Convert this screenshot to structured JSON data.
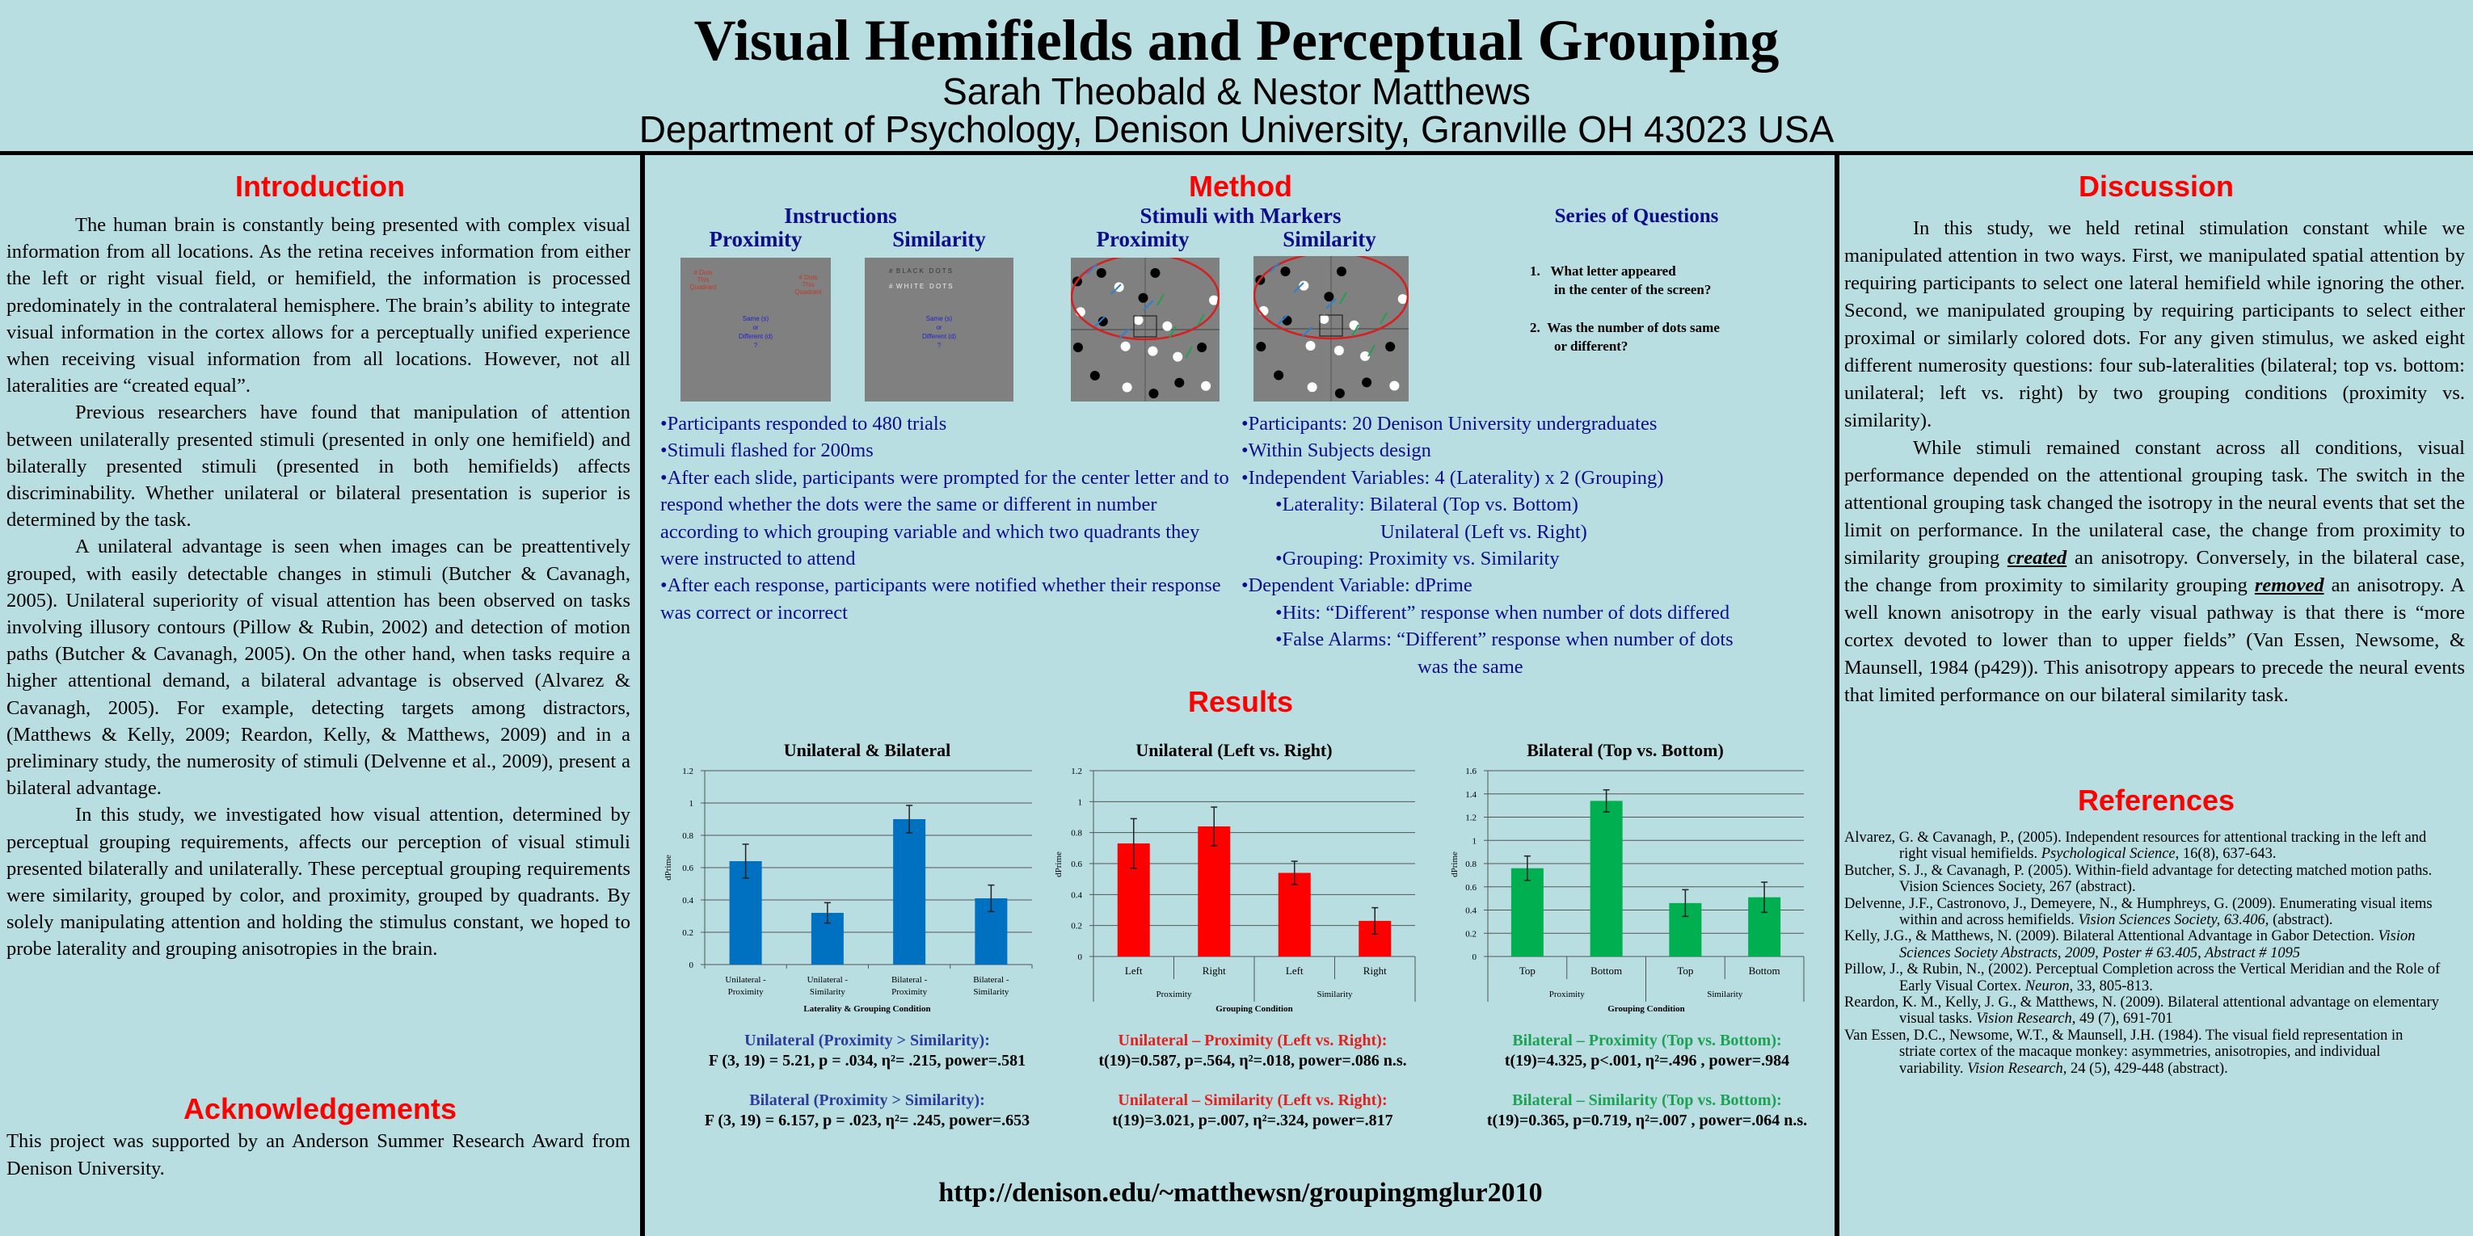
{
  "header": {
    "title": "Visual Hemifields and Perceptual Grouping",
    "authors": "Sarah Theobald & Nestor Matthews",
    "affiliation": "Department of Psychology, Denison University, Granville OH 43023 USA"
  },
  "introduction": {
    "heading": "Introduction",
    "paragraphs": [
      "The human brain is constantly being presented with complex visual information from all locations. As the retina receives information from either the left or right visual field, or hemifield, the information is processed predominately in the contralateral hemisphere. The brain’s ability to integrate visual information in the cortex allows for a perceptually unified experience when receiving visual information from all locations. However, not all lateralities are “created equal”.",
      "Previous researchers have found that manipulation of attention between unilaterally presented stimuli (presented in only one hemifield) and bilaterally presented stimuli (presented in both hemifields) affects discriminability. Whether unilateral or bilateral presentation is superior  is determined by the task.",
      "A unilateral advantage is seen when images can be preattentively grouped, with easily detectable changes in stimuli (Butcher & Cavanagh, 2005). Unilateral superiority  of visual attention has been observed on tasks involving illusory contours (Pillow & Rubin, 2002) and detection of motion paths (Butcher & Cavanagh, 2005). On the other hand, when tasks require a higher attentional demand, a bilateral advantage is observed (Alvarez & Cavanagh, 2005). For example, detecting targets among distractors, (Matthews & Kelly, 2009; Reardon, Kelly, & Matthews, 2009) and in a preliminary study, the numerosity of stimuli (Delvenne et al., 2009), present a bilateral advantage.",
      "In this study, we investigated how visual attention, determined by perceptual grouping requirements, affects our perception of visual stimuli presented bilaterally and unilaterally. These perceptual grouping requirements were similarity, grouped by color, and proximity, grouped by quadrants. By solely manipulating attention and holding the stimulus constant, we hoped to probe laterality and grouping anisotropies in the brain."
    ]
  },
  "acknowledgements": {
    "heading": "Acknowledgements",
    "text": "This project was supported by an Anderson Summer Research Award from Denison University."
  },
  "method": {
    "heading": "Method",
    "instructions_heading": "Instructions",
    "stimuli_heading": "Stimuli with Markers",
    "proximity": "Proximity",
    "similarity": "Similarity",
    "instr_proximity_corner": "# Dots This Quadrant",
    "instr_black": "#  B L A C K   D O T S",
    "instr_white": "#  W H I T E   D O T S",
    "instr_prompt": [
      "Same (s)",
      "or",
      "Different (d)",
      "?"
    ],
    "questions_heading": "Series of Questions",
    "questions": [
      {
        "num": "1.",
        "line1": "What letter appeared",
        "line2": "in the center of the screen?"
      },
      {
        "num": "2.",
        "line1": "Was the number of dots same",
        "line2": "or different?"
      }
    ],
    "procedure": [
      "•Participants responded to 480 trials",
      "•Stimuli flashed for 200ms",
      "•After each slide, participants were prompted for the center letter and to respond whether the dots were the same or different in number according to which grouping variable and which two quadrants they were instructed to attend",
      "•After each response, participants were notified whether their response was correct or incorrect"
    ],
    "design": {
      "participants": "•Participants: 20 Denison University undergraduates",
      "within": "•Within Subjects design",
      "iv": "•Independent Variables: 4 (Laterality) x 2 (Grouping)",
      "laterality_label": "•Laterality:",
      "laterality_1": "Bilateral (Top vs. Bottom)",
      "laterality_2": "Unilateral  (Left vs. Right)",
      "grouping": "•Grouping: Proximity vs. Similarity",
      "dv": "•Dependent Variable: dPrime",
      "hits": "•Hits: “Different”  response when number of dots differed",
      "fa": "•False Alarms: “Different” response when number of dots",
      "fa2": "was the same"
    }
  },
  "results": {
    "heading": "Results",
    "stats": [
      [
        {
          "head": "Unilateral (Proximity > Similarity):",
          "value": "F (3, 19) = 5.21, p = .034, η²= .215, power=.581"
        },
        {
          "head": "Bilateral (Proximity > Similarity):",
          "value": "F (3, 19) = 6.157, p = .023, η²= .245, power=.653"
        }
      ],
      [
        {
          "head": "Unilateral – Proximity (Left vs. Right):",
          "value": "t(19)=0.587, p=.564, η²=.018, power=.086 n.s."
        },
        {
          "head": "Unilateral – Similarity (Left vs. Right):",
          "value": "t(19)=3.021, p=.007, η²=.324, power=.817"
        }
      ],
      [
        {
          "head": "Bilateral – Proximity (Top vs. Bottom):",
          "value": "t(19)=4.325, p<.001, η²=.496 , power=.984"
        },
        {
          "head": "Bilateral – Similarity (Top vs. Bottom):",
          "value": "t(19)=0.365, p=0.719, η²=.007 , power=.064 n.s."
        }
      ]
    ]
  },
  "chart_data": [
    {
      "type": "bar",
      "title": "Unilateral & Bilateral",
      "xlabel": "Laterality & Grouping Condition",
      "ylabel": "dPrime",
      "categories": [
        "Unilateral - Proximity",
        "Unilateral - Similarity",
        "Bilateral - Proximity",
        "Bilateral - Similarity"
      ],
      "groups": [],
      "values": [
        0.64,
        0.32,
        0.9,
        0.41
      ],
      "errors": [
        0.105,
        0.063,
        0.085,
        0.082
      ],
      "ylim": [
        0,
        1.2
      ],
      "yticks": [
        "0",
        "0.2",
        "0.4",
        "0.6",
        "0.8",
        "1",
        "1.2"
      ],
      "grid": true,
      "color": "#0070c0"
    },
    {
      "type": "bar",
      "title": "Unilateral (Left vs. Right)",
      "xlabel": "Grouping Condition",
      "ylabel": "dPrime",
      "categories": [
        "Left",
        "Right",
        "Left",
        "Right"
      ],
      "groups": [
        "Proximity",
        "Similarity"
      ],
      "values": [
        0.73,
        0.84,
        0.54,
        0.23
      ],
      "errors": [
        0.16,
        0.125,
        0.075,
        0.085
      ],
      "ylim": [
        0,
        1.2
      ],
      "yticks": [
        "0",
        "0.2",
        "0.4",
        "0.6",
        "0.8",
        "1",
        "1.2"
      ],
      "grid": true,
      "color": "#ff0000"
    },
    {
      "type": "bar",
      "title": "Bilateral (Top vs. Bottom)",
      "xlabel": "Grouping Condition",
      "ylabel": "dPrime",
      "categories": [
        "Top",
        "Bottom",
        "Top",
        "Bottom"
      ],
      "groups": [
        "Proximity",
        "Similarity"
      ],
      "values": [
        0.76,
        1.34,
        0.46,
        0.51
      ],
      "errors": [
        0.105,
        0.095,
        0.115,
        0.13
      ],
      "ylim": [
        0,
        1.6
      ],
      "yticks": [
        "0",
        "0.2",
        "0.4",
        "0.6",
        "0.8",
        "1",
        "1.2",
        "1.4",
        "1.6"
      ],
      "grid": true,
      "color": "#00b050"
    }
  ],
  "colors": {
    "background": "#b8dee1",
    "heading": "#ff0000",
    "method_text": "#0d0d8a",
    "stat_blue": "#2f3b9c",
    "stat_red": "#e32020",
    "stat_green": "#1ca153"
  },
  "discussion": {
    "heading": "Discussion",
    "p1": "In this study, we held retinal stimulation constant while we manipulated attention in two ways. First, we manipulated spatial attention by requiring participants to select one lateral hemifield while ignoring the other. Second, we manipulated grouping by requiring participants to select either proximal or similarly colored dots. For any given stimulus, we asked eight different numerosity questions: four sub-lateralities (bilateral; top vs. bottom: unilateral; left vs. right) by two grouping conditions (proximity vs. similarity).",
    "p2a": "While stimuli remained constant across all conditions, visual performance depended on the attentional grouping task. The switch in the attentional grouping task changed the isotropy in the neural events that set the limit on performance. In the unilateral case, the change from proximity to similarity grouping ",
    "p2_em1": "created",
    "p2b": " an anisotropy. Conversely, in the bilateral case, the change from proximity to similarity grouping ",
    "p2_em2": "removed",
    "p2c": " an anisotropy. A well known anisotropy in the early visual pathway is that there is “more cortex devoted to lower than to upper fields” (Van Essen, Newsome, & Maunsell, 1984 (p429)). This anisotropy appears to precede the neural events that limited performance on our bilateral similarity task."
  },
  "references": {
    "heading": "References",
    "items": [
      {
        "a": "Alvarez, G. & Cavanagh, P., (2005). Independent resources for attentional tracking in the left and right visual hemifields. ",
        "i": "Psychological Science",
        "b": ", 16(8), 637-643."
      },
      {
        "a": "Butcher, S. J., & Cavanagh, P. (2005). Within-field advantage for detecting matched motion paths. Vision Sciences Society, 267 (abstract).",
        "i": "",
        "b": ""
      },
      {
        "a": "Delvenne, J.F., Castronovo, J., Demeyere, N., & Humphreys, G. (2009). Enumerating visual items within and across hemifields. ",
        "i": "Vision Sciences    Society, 63.406,",
        "b": " (abstract)."
      },
      {
        "a": "Kelly, J.G., & Matthews, N. (2009). Bilateral Attentional Advantage in Gabor Detection. ",
        "i": "Vision Sciences Society Abstracts, 2009, Poster # 63.405,  Abstract # 1095",
        "b": ""
      },
      {
        "a": "Pillow, J., & Rubin, N., (2002). Perceptual Completion across the Vertical Meridian and the Role of Early Visual Cortex. ",
        "i": "Neuron",
        "b": ", 33, 805-813."
      },
      {
        "a": "Reardon, K. M., Kelly, J. G., & Matthews, N. (2009). Bilateral attentional advantage on elementary visual tasks. ",
        "i": "Vision Research,",
        "b": "  49 (7), 691-701"
      },
      {
        "a": "Van Essen, D.C., Newsome, W.T., & Maunsell, J.H. (1984). The visual field representation in striate cortex of the macaque monkey: asymmetries, anisotropies, and individual variability. ",
        "i": "Vision Research,",
        "b": "  24 (5), 429-448 (abstract)."
      }
    ]
  },
  "footer": {
    "url": "http://denison.edu/~matthewsn/groupingmglur2010"
  }
}
